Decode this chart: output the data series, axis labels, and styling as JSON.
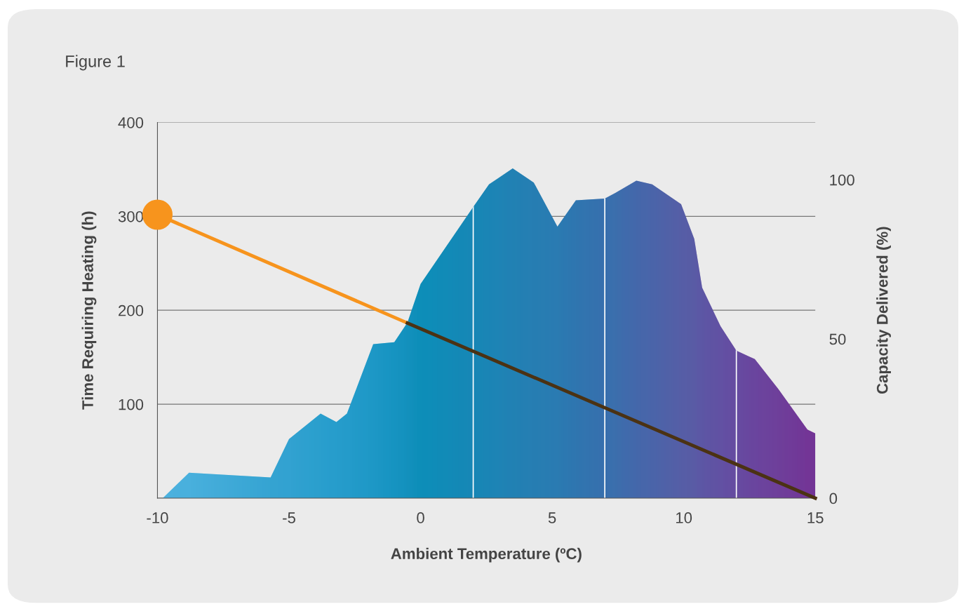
{
  "chart_data": {
    "type": "area",
    "title": "Figure 1",
    "xlabel": "Ambient Temperature (ºC)",
    "ylabel": "Time Requiring Heating (h)",
    "y2label": "Capacity Delivered (%)",
    "xlim": [
      -10,
      15
    ],
    "xticks": [
      -10,
      -5,
      0,
      5,
      10,
      15
    ],
    "ylim": [
      0,
      400
    ],
    "yticks": [
      {
        "value": 0,
        "label": null
      },
      100,
      200,
      300,
      400
    ],
    "y2lim": [
      0,
      118
    ],
    "y2ticks": [
      0,
      50,
      100
    ],
    "grid": "y",
    "series": [
      {
        "colors": [
          "#5ccaf2",
          "#56c7ef",
          "#3ab6e0",
          "#35b3de",
          "#2aafd9",
          "#25acd7",
          "#22aad5",
          "#18a5cf",
          "#0e9fc8",
          "#0a9bc2",
          "#0097bb",
          "#0f8db8",
          "#158ab7",
          "#1e85b5",
          "#2580b3",
          "#2b7cb2",
          "#3274af",
          "#3d6cad",
          "#436aab",
          "#5060a8",
          "#585ca6",
          "#6853a2",
          "#6e4ea0",
          "#72489f",
          "#7a409d",
          "#80389a",
          "#862f96",
          "#8c2791",
          "#92198b",
          "#93188a",
          "#93188a"
        ],
        "x": [
          -9.8,
          -8.8,
          -5.7,
          -5.0,
          -3.8,
          -3.2,
          -2.8,
          -1.8,
          -1.0,
          -0.5,
          0.0,
          2.0,
          2.6,
          3.5,
          4.3,
          5.2,
          5.9,
          7.0,
          7.4,
          8.2,
          8.8,
          9.9,
          10.4,
          10.7,
          11.4,
          12.0,
          12.7,
          13.6,
          14.7,
          15.0,
          15.0
        ],
        "values": [
          0,
          27,
          22,
          63,
          90,
          81,
          90,
          164,
          166,
          187,
          228,
          310,
          334,
          351,
          336,
          289,
          317,
          319,
          325,
          338,
          334,
          313,
          276,
          224,
          183,
          157,
          148,
          116,
          73,
          69,
          0
        ]
      },
      {
        "type": "line",
        "axis": "y2",
        "color": "#f7941d",
        "x": [
          -10,
          -0.5
        ],
        "values": [
          89,
          55
        ]
      },
      {
        "type": "line",
        "axis": "y2",
        "color": "#4b3213",
        "x": [
          -0.5,
          15
        ],
        "values": [
          55,
          0
        ]
      },
      {
        "type": "scatter",
        "axis": "y2",
        "color": "#f7941d",
        "marker": "circle",
        "x": [
          -10
        ],
        "values": [
          89
        ]
      }
    ],
    "ref_lines": [
      {
        "axis": "x",
        "value": 2,
        "color": "#ffffff"
      },
      {
        "axis": "x",
        "value": 7,
        "color": "#ffffff"
      },
      {
        "axis": "x",
        "value": 12,
        "color": "#ffffff"
      }
    ]
  }
}
